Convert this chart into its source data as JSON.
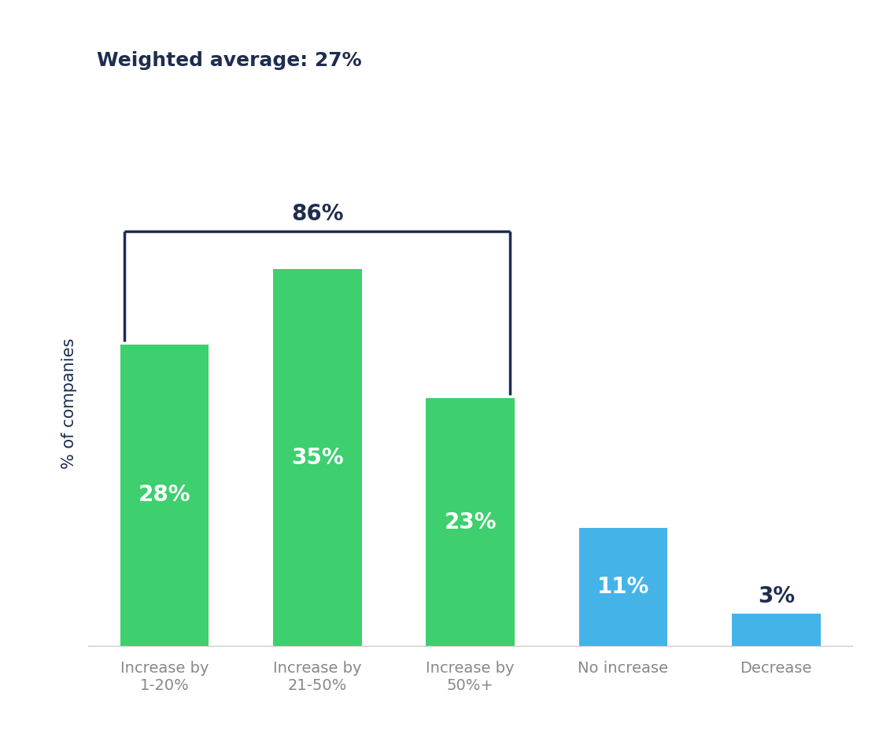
{
  "categories": [
    "Increase by\n1-20%",
    "Increase by\n21-50%",
    "Increase by\n50%+",
    "No increase",
    "Decrease"
  ],
  "values": [
    28,
    35,
    23,
    11,
    3
  ],
  "bar_colors": [
    "#3ecf6e",
    "#3ecf6e",
    "#3ecf6e",
    "#44b4e8",
    "#44b4e8"
  ],
  "bar_label_colors": [
    "white",
    "white",
    "white",
    "white",
    "#1e2d4f"
  ],
  "bar_label_inside": [
    true,
    true,
    true,
    true,
    false
  ],
  "title": "Weighted average: 27%",
  "ylabel": "% of companies",
  "ylim": [
    0,
    45
  ],
  "title_fontsize": 18,
  "ylabel_fontsize": 15,
  "tick_label_fontsize": 14,
  "bar_label_fontsize": 20,
  "bracket_label": "86%",
  "bracket_label_fontsize": 20,
  "bracket_indices": [
    0,
    2
  ],
  "background_color": "#ffffff",
  "title_color": "#1e2d4f",
  "axis_color": "#cccccc",
  "tick_color": "#888888",
  "bracket_color": "#1e2d4f",
  "bracket_lw": 2.5
}
